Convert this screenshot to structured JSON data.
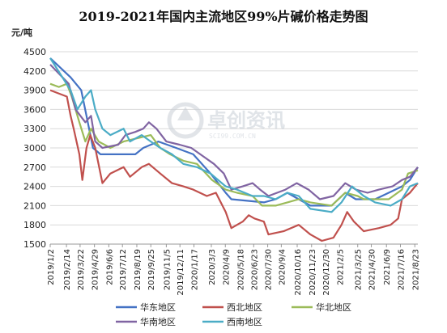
{
  "chart_data": {
    "type": "line",
    "title": "2019-2021年国内主流地区99%片碱价格走势图",
    "ylabel": "元/吨",
    "ylim": [
      1500,
      4500
    ],
    "yticks": [
      1500,
      1800,
      2100,
      2400,
      2700,
      3000,
      3300,
      3600,
      3900,
      4200,
      4500
    ],
    "xlim": [
      "2019-01-02",
      "2021-08-31"
    ],
    "xtick_labels": [
      "2019/1/2",
      "2019/2/14",
      "2019/3/22",
      "2019/4/29",
      "2019/6/6",
      "2019/7/12",
      "2019/8/19",
      "2019/9/25",
      "2019/11/5",
      "2019/12/11",
      "2020/1/17",
      "2020/3/3",
      "2020/4/9",
      "2020/5/18",
      "2020/6/23",
      "2020/7/30",
      "2020/9/4",
      "2020/10/16",
      "2020/11/23",
      "2020/12/30",
      "2021/2/5",
      "2021/3/25",
      "2021/4/30",
      "2021/6/9",
      "2021/7/16",
      "2021/8/23"
    ],
    "grid": "horizontal",
    "legend_position": "bottom",
    "series": [
      {
        "name": "华东地区",
        "color": "#4472c4",
        "points": [
          [
            "2019-01-02",
            4400
          ],
          [
            "2019-02-25",
            4100
          ],
          [
            "2019-03-25",
            3900
          ],
          [
            "2019-04-08",
            3500
          ],
          [
            "2019-04-25",
            3000
          ],
          [
            "2019-05-15",
            2900
          ],
          [
            "2019-08-15",
            2900
          ],
          [
            "2019-09-05",
            3000
          ],
          [
            "2019-10-15",
            3100
          ],
          [
            "2019-12-01",
            3000
          ],
          [
            "2020-01-15",
            2900
          ],
          [
            "2020-03-01",
            2600
          ],
          [
            "2020-04-10",
            2300
          ],
          [
            "2020-04-25",
            2200
          ],
          [
            "2020-07-20",
            2150
          ],
          [
            "2020-08-20",
            2200
          ],
          [
            "2020-09-20",
            2300
          ],
          [
            "2020-10-20",
            2200
          ],
          [
            "2020-11-20",
            2100
          ],
          [
            "2021-01-15",
            2100
          ],
          [
            "2021-02-20",
            2300
          ],
          [
            "2021-03-20",
            2200
          ],
          [
            "2021-05-10",
            2200
          ],
          [
            "2021-06-15",
            2300
          ],
          [
            "2021-07-20",
            2400
          ],
          [
            "2021-08-10",
            2500
          ],
          [
            "2021-08-31",
            2700
          ]
        ]
      },
      {
        "name": "西北地区",
        "color": "#c0504d",
        "points": [
          [
            "2019-01-02",
            3900
          ],
          [
            "2019-02-15",
            3800
          ],
          [
            "2019-02-25",
            3500
          ],
          [
            "2019-03-05",
            3300
          ],
          [
            "2019-03-20",
            2900
          ],
          [
            "2019-03-28",
            2500
          ],
          [
            "2019-04-08",
            3000
          ],
          [
            "2019-04-18",
            3200
          ],
          [
            "2019-05-01",
            3000
          ],
          [
            "2019-05-20",
            2450
          ],
          [
            "2019-06-10",
            2600
          ],
          [
            "2019-07-15",
            2700
          ],
          [
            "2019-08-01",
            2550
          ],
          [
            "2019-09-01",
            2700
          ],
          [
            "2019-09-20",
            2750
          ],
          [
            "2019-10-20",
            2600
          ],
          [
            "2019-11-20",
            2450
          ],
          [
            "2019-12-20",
            2400
          ],
          [
            "2020-01-15",
            2350
          ],
          [
            "2020-02-20",
            2250
          ],
          [
            "2020-03-15",
            2300
          ],
          [
            "2020-04-10",
            2000
          ],
          [
            "2020-04-25",
            1750
          ],
          [
            "2020-05-25",
            1850
          ],
          [
            "2020-06-10",
            1950
          ],
          [
            "2020-06-25",
            1900
          ],
          [
            "2020-07-20",
            1850
          ],
          [
            "2020-08-01",
            1650
          ],
          [
            "2020-09-10",
            1700
          ],
          [
            "2020-10-20",
            1800
          ],
          [
            "2020-11-20",
            1650
          ],
          [
            "2020-12-20",
            1550
          ],
          [
            "2021-01-20",
            1600
          ],
          [
            "2021-02-10",
            1800
          ],
          [
            "2021-02-25",
            2000
          ],
          [
            "2021-03-15",
            1850
          ],
          [
            "2021-04-10",
            1700
          ],
          [
            "2021-05-20",
            1750
          ],
          [
            "2021-06-20",
            1800
          ],
          [
            "2021-07-10",
            1900
          ],
          [
            "2021-07-20",
            2200
          ],
          [
            "2021-08-10",
            2300
          ],
          [
            "2021-08-31",
            2450
          ]
        ]
      },
      {
        "name": "华北地区",
        "color": "#9bbb59",
        "points": [
          [
            "2019-01-02",
            4000
          ],
          [
            "2019-01-25",
            3950
          ],
          [
            "2019-02-15",
            4000
          ],
          [
            "2019-02-28",
            3800
          ],
          [
            "2019-03-20",
            3400
          ],
          [
            "2019-04-05",
            3100
          ],
          [
            "2019-04-20",
            3300
          ],
          [
            "2019-05-10",
            3100
          ],
          [
            "2019-06-10",
            3000
          ],
          [
            "2019-07-15",
            3100
          ],
          [
            "2019-08-20",
            3150
          ],
          [
            "2019-09-25",
            3200
          ],
          [
            "2019-10-20",
            3000
          ],
          [
            "2019-11-15",
            2900
          ],
          [
            "2019-12-20",
            2800
          ],
          [
            "2020-01-25",
            2750
          ],
          [
            "2020-03-05",
            2500
          ],
          [
            "2020-04-10",
            2350
          ],
          [
            "2020-05-10",
            2300
          ],
          [
            "2020-06-20",
            2250
          ],
          [
            "2020-07-15",
            2100
          ],
          [
            "2020-08-20",
            2100
          ],
          [
            "2020-09-20",
            2150
          ],
          [
            "2020-10-20",
            2200
          ],
          [
            "2020-11-20",
            2150
          ],
          [
            "2021-01-15",
            2100
          ],
          [
            "2021-02-20",
            2300
          ],
          [
            "2021-03-25",
            2250
          ],
          [
            "2021-04-10",
            2200
          ],
          [
            "2021-06-15",
            2200
          ],
          [
            "2021-07-20",
            2350
          ],
          [
            "2021-08-05",
            2600
          ],
          [
            "2021-08-31",
            2650
          ]
        ]
      },
      {
        "name": "华南地区",
        "color": "#8064a2",
        "points": [
          [
            "2019-01-02",
            4300
          ],
          [
            "2019-02-20",
            4000
          ],
          [
            "2019-03-10",
            3600
          ],
          [
            "2019-04-05",
            3400
          ],
          [
            "2019-04-20",
            3500
          ],
          [
            "2019-05-01",
            3100
          ],
          [
            "2019-05-20",
            3000
          ],
          [
            "2019-07-01",
            3050
          ],
          [
            "2019-07-20",
            3200
          ],
          [
            "2019-08-15",
            3250
          ],
          [
            "2019-09-05",
            3300
          ],
          [
            "2019-09-20",
            3400
          ],
          [
            "2019-10-10",
            3300
          ],
          [
            "2019-11-05",
            3100
          ],
          [
            "2019-12-10",
            3050
          ],
          [
            "2020-01-10",
            3000
          ],
          [
            "2020-02-15",
            2850
          ],
          [
            "2020-03-10",
            2750
          ],
          [
            "2020-04-05",
            2600
          ],
          [
            "2020-04-25",
            2350
          ],
          [
            "2020-05-25",
            2400
          ],
          [
            "2020-06-20",
            2450
          ],
          [
            "2020-07-10",
            2350
          ],
          [
            "2020-08-01",
            2250
          ],
          [
            "2020-09-15",
            2350
          ],
          [
            "2020-10-15",
            2450
          ],
          [
            "2020-11-15",
            2350
          ],
          [
            "2020-12-15",
            2200
          ],
          [
            "2021-01-20",
            2250
          ],
          [
            "2021-02-20",
            2450
          ],
          [
            "2021-03-20",
            2350
          ],
          [
            "2021-04-20",
            2300
          ],
          [
            "2021-05-20",
            2350
          ],
          [
            "2021-06-25",
            2400
          ],
          [
            "2021-07-20",
            2500
          ],
          [
            "2021-08-10",
            2550
          ],
          [
            "2021-08-31",
            2700
          ]
        ]
      },
      {
        "name": "西南地区",
        "color": "#4bacc6",
        "points": [
          [
            "2019-01-02",
            4400
          ],
          [
            "2019-02-25",
            3900
          ],
          [
            "2019-03-15",
            3600
          ],
          [
            "2019-04-05",
            3800
          ],
          [
            "2019-04-20",
            3900
          ],
          [
            "2019-05-01",
            3600
          ],
          [
            "2019-05-20",
            3300
          ],
          [
            "2019-06-10",
            3200
          ],
          [
            "2019-07-15",
            3300
          ],
          [
            "2019-08-01",
            3100
          ],
          [
            "2019-09-01",
            3200
          ],
          [
            "2019-09-25",
            3100
          ],
          [
            "2019-10-20",
            3000
          ],
          [
            "2019-11-20",
            2900
          ],
          [
            "2019-12-20",
            2750
          ],
          [
            "2020-01-25",
            2700
          ],
          [
            "2020-03-01",
            2600
          ],
          [
            "2020-04-10",
            2400
          ],
          [
            "2020-05-10",
            2350
          ],
          [
            "2020-06-20",
            2250
          ],
          [
            "2020-07-20",
            2250
          ],
          [
            "2020-08-20",
            2200
          ],
          [
            "2020-09-20",
            2300
          ],
          [
            "2020-10-20",
            2250
          ],
          [
            "2020-11-20",
            2050
          ],
          [
            "2021-01-15",
            2000
          ],
          [
            "2021-02-10",
            2150
          ],
          [
            "2021-03-10",
            2400
          ],
          [
            "2021-04-10",
            2250
          ],
          [
            "2021-05-10",
            2150
          ],
          [
            "2021-06-20",
            2100
          ],
          [
            "2021-07-20",
            2200
          ],
          [
            "2021-08-10",
            2400
          ],
          [
            "2021-08-31",
            2450
          ]
        ]
      }
    ]
  },
  "watermark": {
    "main": "卓创资讯",
    "sub": "SCI99.COM.CN"
  }
}
